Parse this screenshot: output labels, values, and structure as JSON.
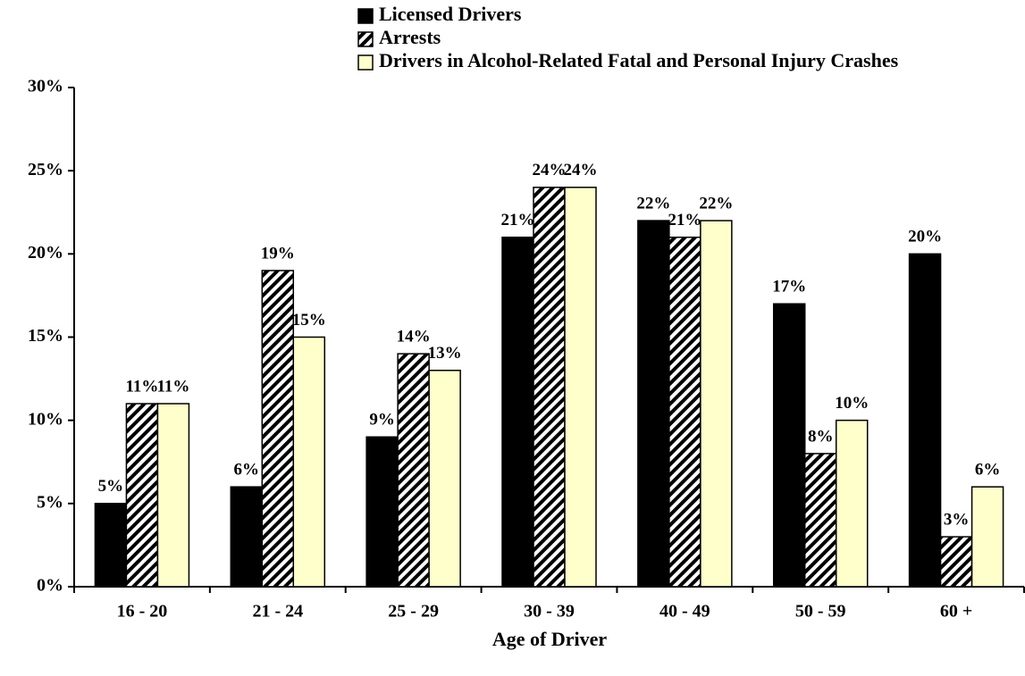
{
  "chart_data": {
    "type": "bar",
    "x_label": "Age of Driver",
    "categories": [
      "16 - 20",
      "21 - 24",
      "25 - 29",
      "30 - 39",
      "40 - 49",
      "50 - 59",
      "60 +"
    ],
    "series": [
      {
        "name": "Licensed Drivers",
        "color": "#000000",
        "values": [
          5,
          6,
          9,
          21,
          22,
          17,
          20
        ],
        "value_labels": [
          "5%",
          "6%",
          "9%",
          "21%",
          "22%",
          "17%",
          "20%"
        ]
      },
      {
        "name": "Arrests",
        "color": "#000000",
        "hatch": true,
        "values": [
          11,
          19,
          14,
          24,
          21,
          8,
          3
        ],
        "value_labels": [
          "11%",
          "19%",
          "14%",
          "24%",
          "21%",
          "8%",
          "3%"
        ]
      },
      {
        "name": "Drivers in Alcohol-Related Fatal and Personal Injury Crashes",
        "color": "#ffffcc",
        "values": [
          11,
          15,
          13,
          24,
          22,
          10,
          6
        ],
        "value_labels": [
          "11%",
          "15%",
          "13%",
          "24%",
          "22%",
          "10%",
          "6%"
        ]
      }
    ],
    "ylim": [
      0,
      30
    ],
    "yticks": [
      {
        "value": 0,
        "label": "0%"
      },
      {
        "value": 5,
        "label": "5%"
      },
      {
        "value": 10,
        "label": "10%"
      },
      {
        "value": 15,
        "label": "15%"
      },
      {
        "value": 20,
        "label": "20%"
      },
      {
        "value": 25,
        "label": "25%"
      },
      {
        "value": 30,
        "label": "30%"
      }
    ],
    "grid": false
  }
}
